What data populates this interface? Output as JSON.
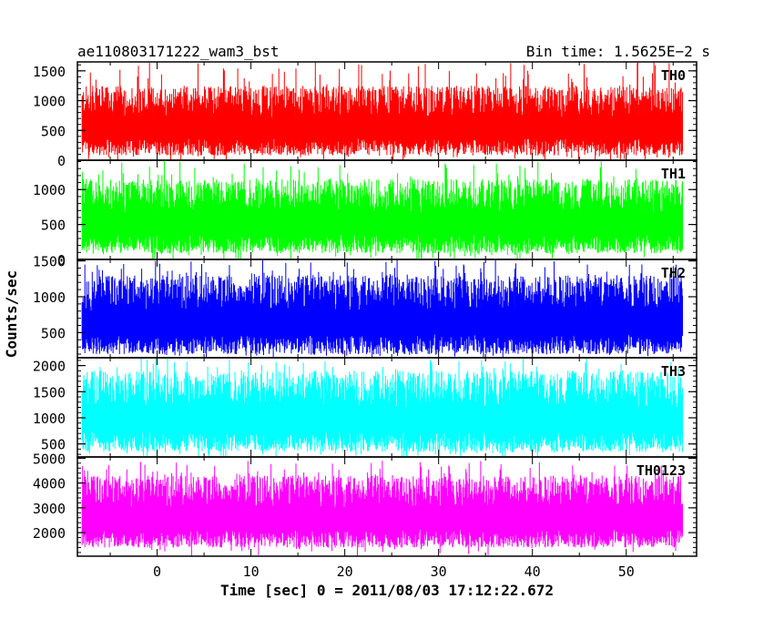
{
  "chart_data": {
    "type": "line",
    "title_left": "ae110803171222_wam3_bst",
    "title_right": "Bin time: 1.5625E−2 s",
    "xlabel": "Time [sec] 0 = 2011/08/03 17:12:22.672",
    "ylabel": "Counts/sec",
    "xlim": [
      -8.5,
      57.5
    ],
    "data_x_range": [
      -8.0,
      56.0
    ],
    "x_ticks": [
      0,
      10,
      20,
      30,
      40,
      50
    ],
    "x_tick_labels": [
      "0",
      "10",
      "20",
      "30",
      "40",
      "50"
    ],
    "grid": false,
    "panels": [
      {
        "name": "TH0",
        "color": "#ff0000",
        "ylim": [
          0,
          1650
        ],
        "ticks": [
          0,
          500,
          1000,
          1500
        ],
        "tick_labels": [
          "0",
          "500",
          "1000",
          "1500"
        ],
        "typical_min": 80,
        "typical_max": 1250,
        "peak": 1650
      },
      {
        "name": "TH1",
        "color": "#00ff00",
        "ylim": [
          0,
          1420
        ],
        "ticks": [
          0,
          500,
          1000
        ],
        "tick_labels": [
          "0",
          "500",
          "1000"
        ],
        "typical_min": 90,
        "typical_max": 1150,
        "peak": 1420
      },
      {
        "name": "TH2",
        "color": "#0000ff",
        "ylim": [
          150,
          1520
        ],
        "ticks": [
          500,
          1000,
          1500
        ],
        "tick_labels": [
          "500",
          "1000",
          "1500"
        ],
        "typical_min": 200,
        "typical_max": 1300,
        "peak": 1520
      },
      {
        "name": "TH3",
        "color": "#00ffff",
        "ylim": [
          250,
          2150
        ],
        "ticks": [
          500,
          1000,
          1500,
          2000
        ],
        "tick_labels": [
          "500",
          "1000",
          "1500",
          "2000"
        ],
        "typical_min": 350,
        "typical_max": 1900,
        "peak": 2150
      },
      {
        "name": "TH0123",
        "color": "#ff00ff",
        "ylim": [
          1050,
          5050
        ],
        "ticks": [
          2000,
          3000,
          4000,
          5000
        ],
        "tick_labels": [
          "2000",
          "3000",
          "4000",
          "5000"
        ],
        "typical_min": 1400,
        "typical_max": 4300,
        "peak": 4900
      }
    ]
  }
}
